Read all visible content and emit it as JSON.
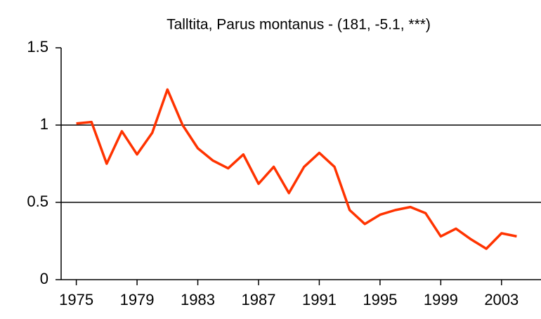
{
  "chart_data": {
    "type": "line",
    "title": "Talltita, Parus montanus - (181, -5.1, ***)",
    "x": [
      1975,
      1976,
      1977,
      1978,
      1979,
      1980,
      1981,
      1982,
      1983,
      1984,
      1985,
      1986,
      1987,
      1988,
      1989,
      1990,
      1991,
      1992,
      1993,
      1994,
      1995,
      1996,
      1997,
      1998,
      1999,
      2000,
      2001,
      2002,
      2003,
      2004
    ],
    "series": [
      {
        "color": "#ff3300",
        "values": [
          1.01,
          1.02,
          0.75,
          0.96,
          0.81,
          0.95,
          1.23,
          1.0,
          0.85,
          0.77,
          0.72,
          0.81,
          0.62,
          0.73,
          0.56,
          0.73,
          0.82,
          0.73,
          0.45,
          0.36,
          0.42,
          0.45,
          0.47,
          0.43,
          0.28,
          0.33,
          0.26,
          0.2,
          0.3,
          0.28
        ]
      }
    ],
    "xlim": [
      1974,
      2005.6
    ],
    "xticks": [
      1975,
      1979,
      1983,
      1987,
      1991,
      1995,
      1999,
      2003
    ],
    "ylim": [
      0,
      1.5
    ],
    "yticks": [
      0,
      0.5,
      1,
      1.5
    ],
    "grid": true
  }
}
